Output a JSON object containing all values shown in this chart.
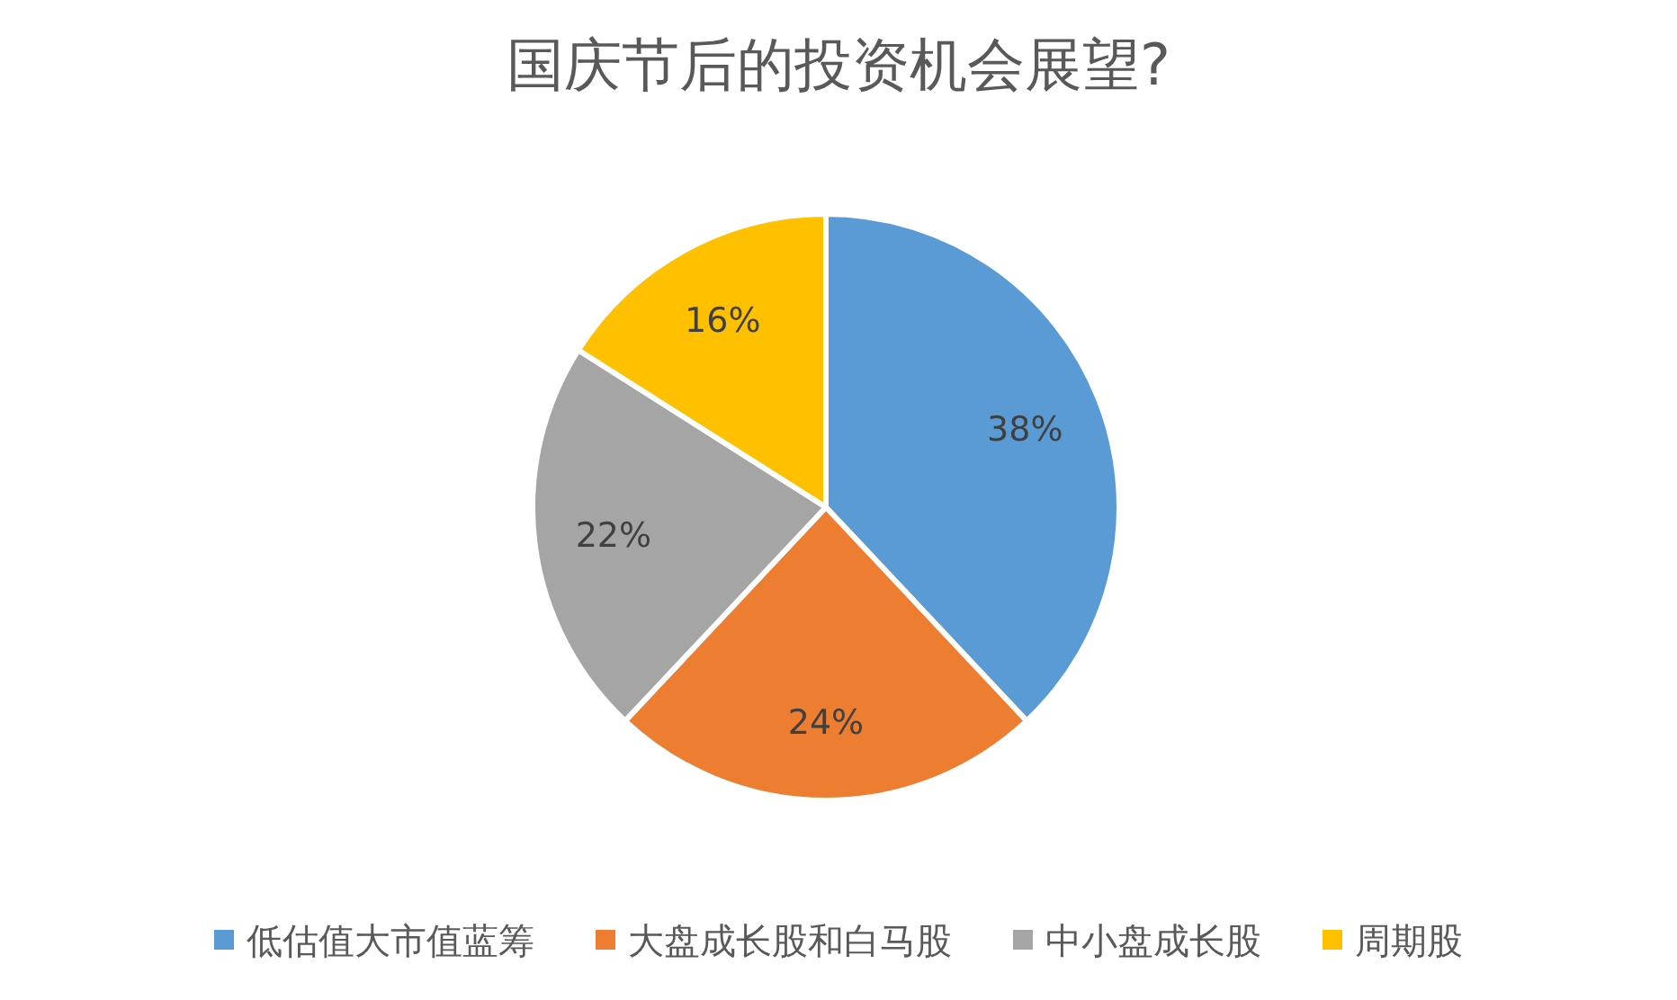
{
  "chart_data": {
    "type": "pie",
    "title": "国庆节后的投资机会展望?",
    "categories": [
      "低估值大市值蓝筹",
      "大盘成长股和白马股",
      "中小盘成长股",
      "周期股"
    ],
    "values": [
      38,
      24,
      22,
      16
    ],
    "colors": [
      "#5b9bd5",
      "#ed7d31",
      "#a5a5a5",
      "#ffc000"
    ],
    "value_labels": [
      "38%",
      "24%",
      "22%",
      "16%"
    ],
    "legend": "bottom"
  }
}
